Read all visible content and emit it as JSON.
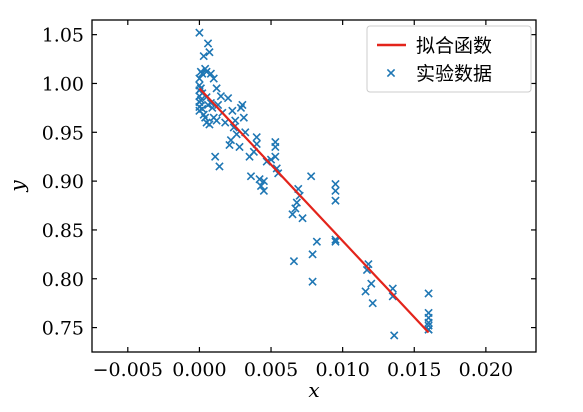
{
  "chart_data": {
    "type": "scatter",
    "xlabel": "x",
    "ylabel": "y",
    "xlim": [
      -0.0075,
      0.0235
    ],
    "ylim": [
      0.725,
      1.065
    ],
    "xticks": [
      -0.005,
      0.0,
      0.005,
      0.01,
      0.015,
      0.02
    ],
    "xtick_labels": [
      "−0.005",
      "0.000",
      "0.005",
      "0.010",
      "0.015",
      "0.020"
    ],
    "yticks": [
      0.75,
      0.8,
      0.85,
      0.9,
      0.95,
      1.0,
      1.05
    ],
    "ytick_labels": [
      "0.75",
      "0.80",
      "0.85",
      "0.90",
      "0.95",
      "1.00",
      "1.05"
    ],
    "grid": false,
    "legend_position": "top-right",
    "series": [
      {
        "name": "拟合函数",
        "kind": "line",
        "color": "#e3241b",
        "x": [
          0.0,
          0.016
        ],
        "y": [
          0.995,
          0.745
        ]
      },
      {
        "name": "实验数据",
        "kind": "scatter",
        "marker": "x",
        "color": "#1f77b4",
        "x": [
          0.0,
          0.0,
          0.0,
          0.0,
          0.0,
          0.0,
          0.0,
          0.0,
          0.0001,
          0.0001,
          0.0001,
          0.0002,
          0.0002,
          0.0002,
          0.0003,
          0.0003,
          0.0004,
          0.0004,
          0.0005,
          0.0005,
          0.0005,
          0.0006,
          0.0006,
          0.0007,
          0.0007,
          0.0008,
          0.0008,
          0.0009,
          0.001,
          0.001,
          0.0011,
          0.0012,
          0.0012,
          0.0013,
          0.0014,
          0.0015,
          0.0016,
          0.0018,
          0.002,
          0.0021,
          0.0022,
          0.0023,
          0.0024,
          0.0025,
          0.0026,
          0.0028,
          0.0029,
          0.003,
          0.0031,
          0.0032,
          0.0035,
          0.0036,
          0.0038,
          0.004,
          0.004,
          0.0042,
          0.0043,
          0.0045,
          0.0045,
          0.0047,
          0.005,
          0.0053,
          0.0053,
          0.0053,
          0.0054,
          0.0055,
          0.0065,
          0.0066,
          0.0067,
          0.0068,
          0.0069,
          0.007,
          0.0072,
          0.0078,
          0.0079,
          0.0079,
          0.0082,
          0.0095,
          0.0095,
          0.0095,
          0.0095,
          0.0095,
          0.0116,
          0.0117,
          0.0118,
          0.012,
          0.0121,
          0.0135,
          0.0135,
          0.0136,
          0.016,
          0.016,
          0.016,
          0.016,
          0.016,
          0.016,
          0.016
        ],
        "y": [
          1.052,
          1.005,
          0.998,
          0.993,
          0.987,
          0.981,
          0.976,
          0.972,
          1.012,
          0.995,
          0.983,
          1.01,
          0.99,
          0.974,
          1.028,
          0.968,
          1.015,
          0.965,
          1.012,
          0.986,
          0.96,
          1.041,
          0.978,
          1.032,
          0.958,
          1.01,
          0.98,
          0.975,
          1.005,
          0.965,
          0.925,
          0.995,
          0.962,
          0.978,
          0.915,
          0.987,
          0.97,
          0.96,
          0.985,
          0.937,
          0.942,
          0.972,
          0.955,
          0.962,
          0.948,
          0.935,
          0.975,
          0.978,
          0.965,
          0.95,
          0.925,
          0.905,
          0.93,
          0.945,
          0.938,
          0.902,
          0.895,
          0.89,
          0.9,
          0.92,
          0.922,
          0.94,
          0.935,
          0.925,
          0.913,
          0.908,
          0.866,
          0.818,
          0.872,
          0.878,
          0.892,
          0.885,
          0.862,
          0.905,
          0.825,
          0.797,
          0.838,
          0.897,
          0.89,
          0.88,
          0.84,
          0.838,
          0.787,
          0.809,
          0.815,
          0.795,
          0.775,
          0.79,
          0.782,
          0.742,
          0.785,
          0.765,
          0.76,
          0.755,
          0.752,
          0.748,
          0.748
        ]
      }
    ]
  }
}
